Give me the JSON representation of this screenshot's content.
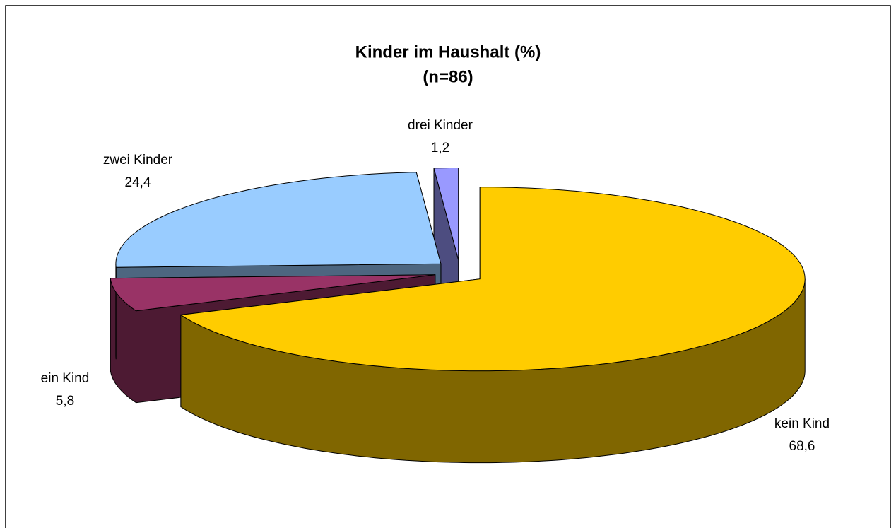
{
  "chart_data": {
    "type": "pie3d",
    "title": "Kinder im Haushalt (%)",
    "subtitle": "(n=86)",
    "categories": [
      "kein Kind",
      "ein Kind",
      "zwei Kinder",
      "drei Kinder"
    ],
    "values": [
      68.6,
      5.8,
      24.4,
      1.2
    ],
    "value_labels": [
      "68,6",
      "5,8",
      "24,4",
      "1,2"
    ],
    "colors": [
      "#FFCC00",
      "#993366",
      "#99CCFF",
      "#9999FF"
    ]
  }
}
